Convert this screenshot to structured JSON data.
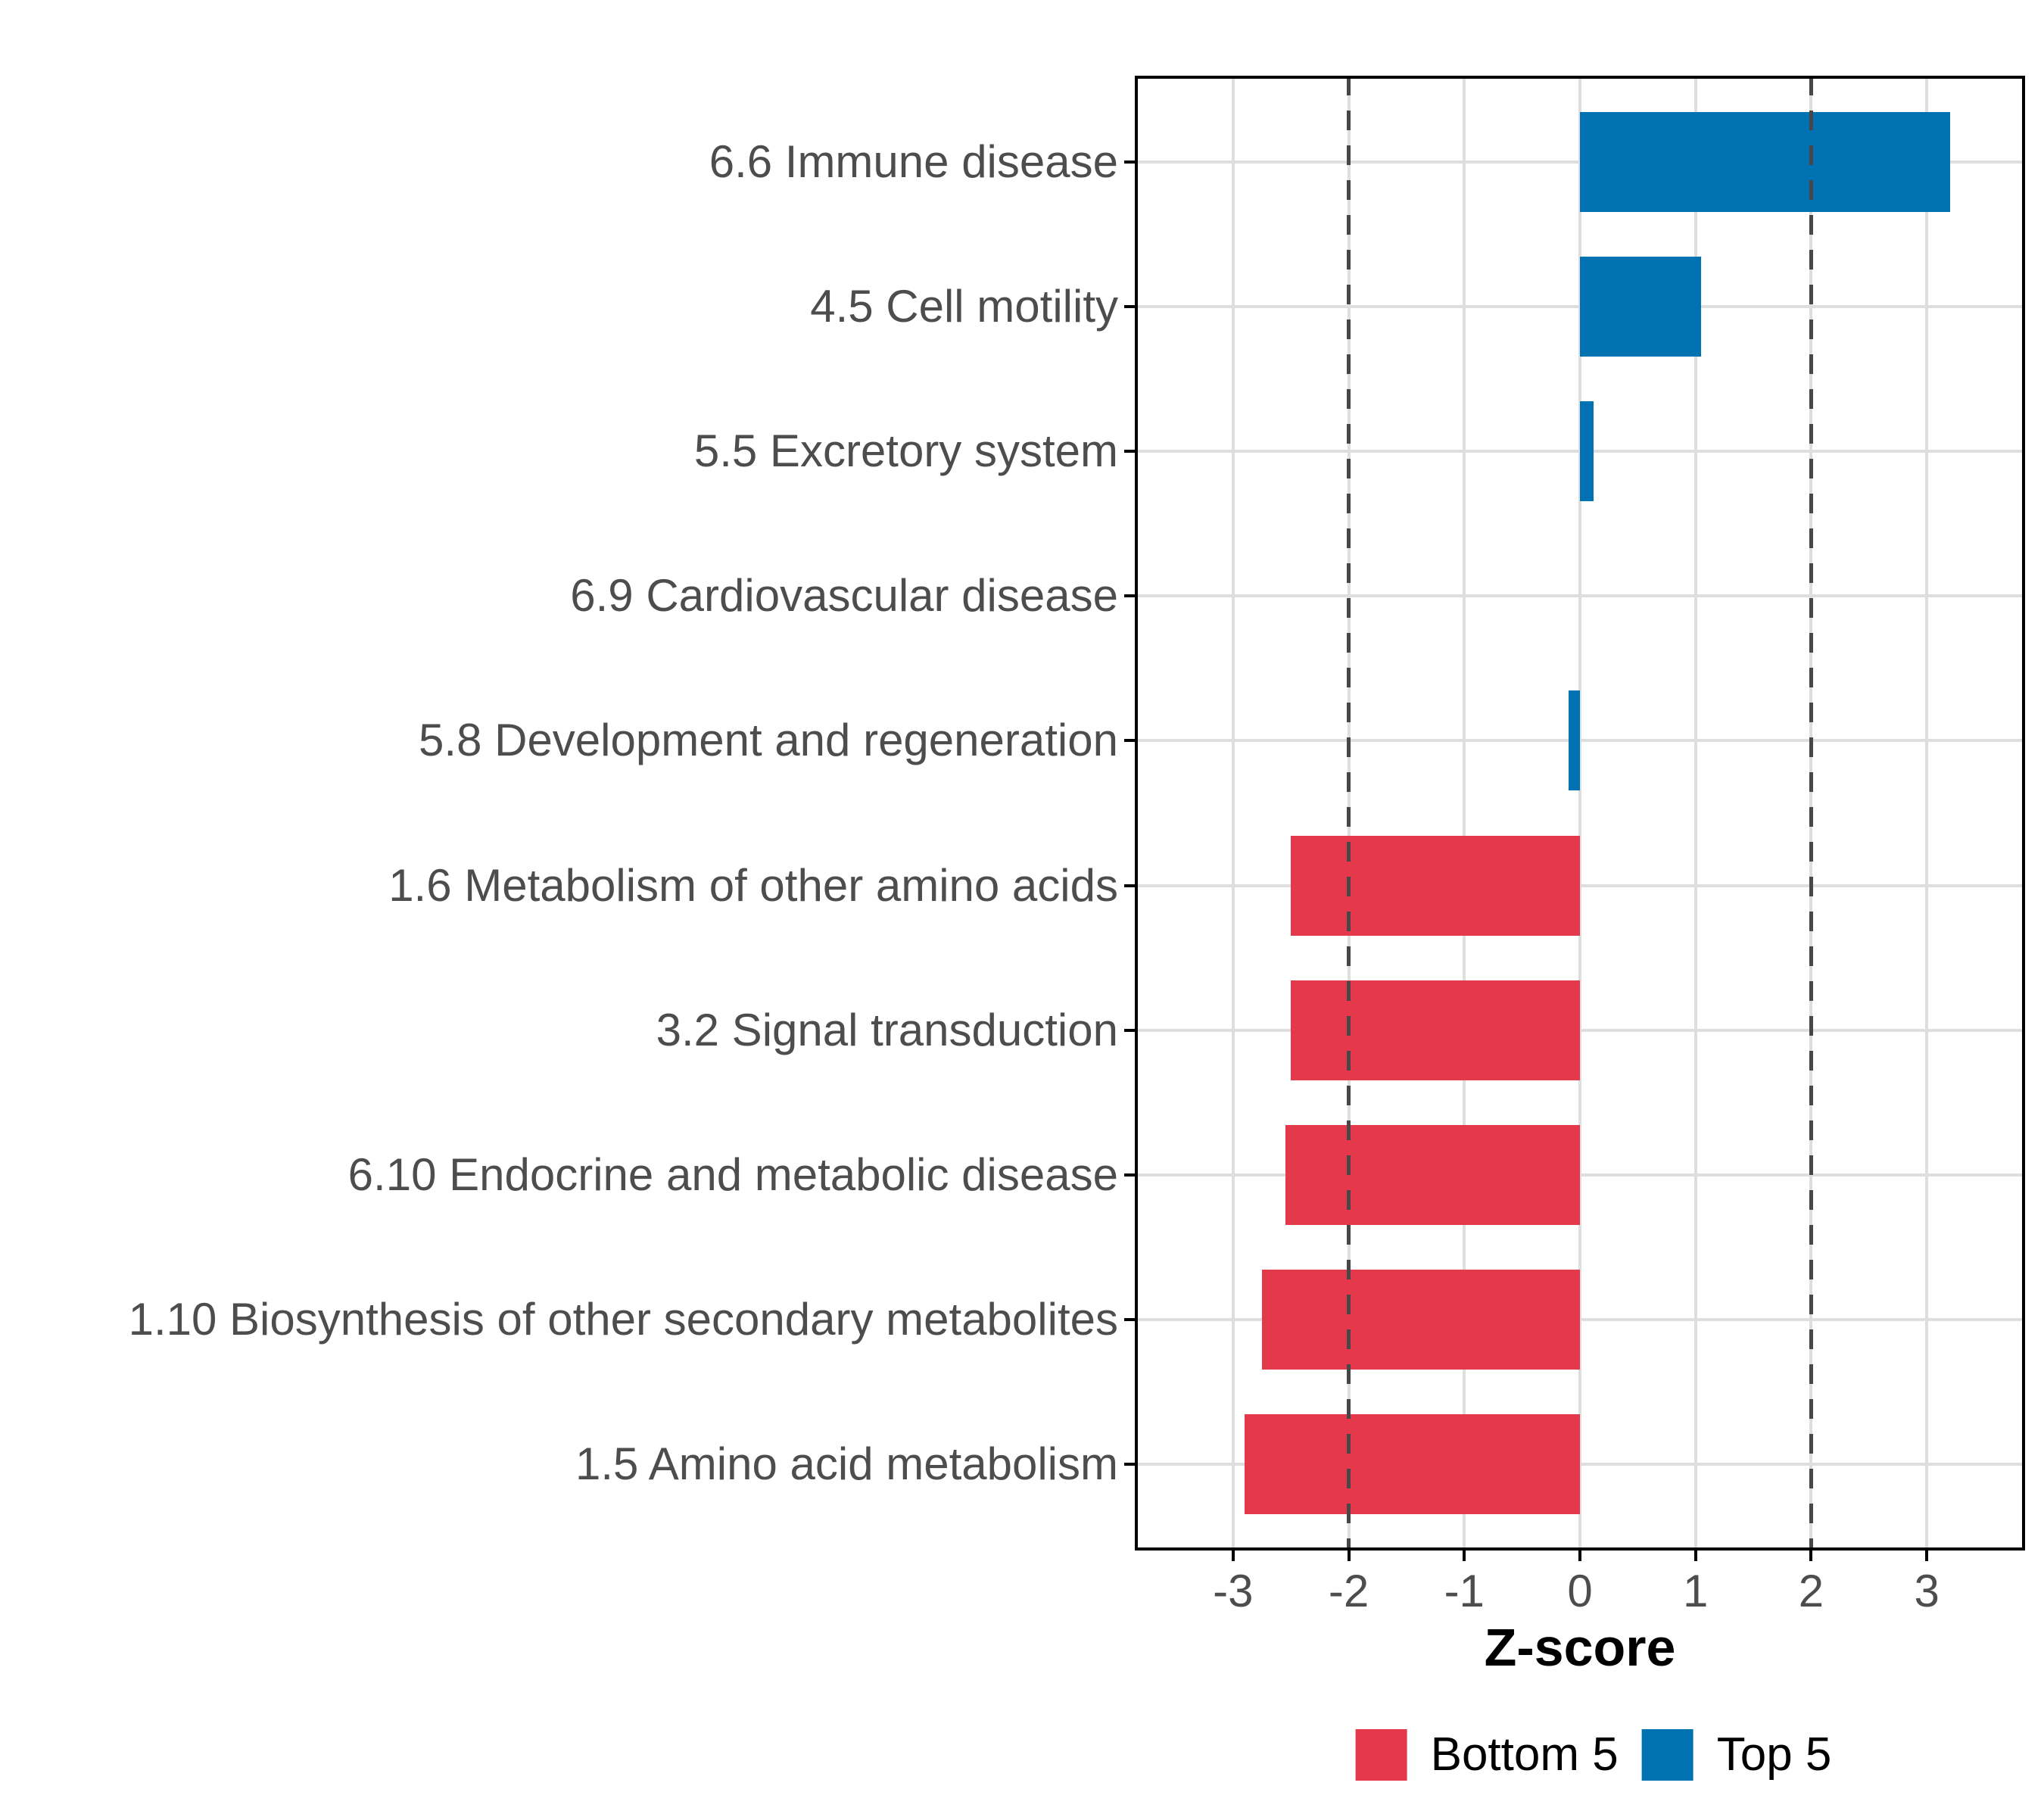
{
  "chart_data": {
    "type": "bar",
    "orientation": "horizontal",
    "title": "",
    "xlabel": "Z-score",
    "ylabel": "",
    "xlim": [
      -3.85,
      3.85
    ],
    "xticks": [
      -3,
      -2,
      -1,
      0,
      1,
      2,
      3
    ],
    "xtick_labels": [
      "-3",
      "-2",
      "-1",
      "0",
      "1",
      "2",
      "3"
    ],
    "reference_lines": [
      -2,
      2
    ],
    "grid": true,
    "legend_position": "bottom",
    "categories": [
      "6.6 Immune disease",
      "4.5 Cell motility",
      "5.5 Excretory system",
      "6.9 Cardiovascular disease",
      "5.8 Development and regeneration",
      "1.6 Metabolism of other amino acids",
      "3.2 Signal transduction",
      "6.10 Endocrine and metabolic disease",
      "1.10 Biosynthesis of other secondary metabolites",
      "1.5 Amino acid metabolism"
    ],
    "values": [
      3.2,
      1.05,
      0.12,
      0,
      -0.1,
      -2.5,
      -2.5,
      -2.55,
      -2.75,
      -2.9
    ],
    "groups": [
      "Top 5",
      "Top 5",
      "Top 5",
      "Top 5",
      "Top 5",
      "Bottom 5",
      "Bottom 5",
      "Bottom 5",
      "Bottom 5",
      "Bottom 5"
    ],
    "legend": [
      {
        "label": "Bottom 5",
        "color": "#e4384b"
      },
      {
        "label": "Top 5",
        "color": "#0072b2"
      }
    ],
    "colors": {
      "Bottom 5": "#e4384b",
      "Top 5": "#0072b2",
      "gridline": "#dedede",
      "reference_line": "#474747",
      "axis_text": "#4d4d4d",
      "axis_title": "#000000",
      "panel_border": "#000000"
    }
  }
}
